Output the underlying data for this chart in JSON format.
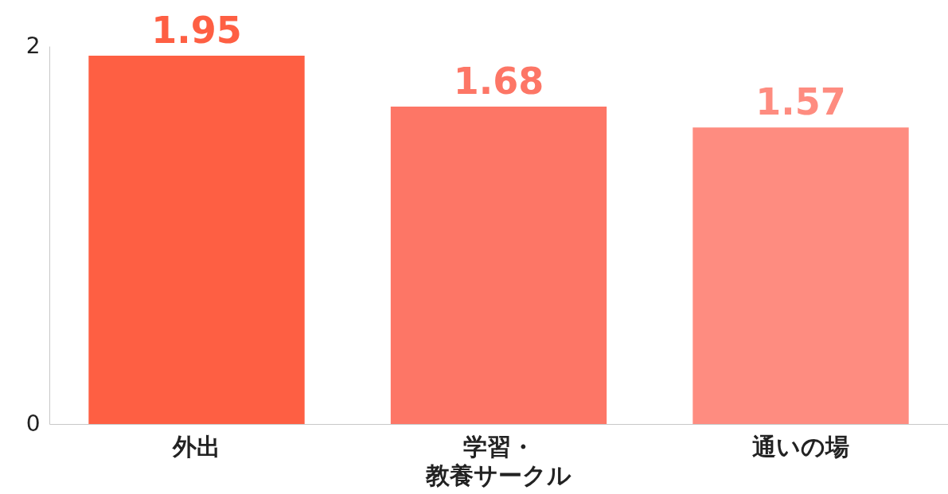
{
  "chart_data": {
    "type": "bar",
    "categories": [
      "外出",
      "学習・教養サークル",
      "通いの場"
    ],
    "values": [
      1.95,
      1.68,
      1.57
    ],
    "colors": [
      "#fe5f43",
      "#fd7666",
      "#fe8c80"
    ],
    "ylim": [
      0,
      2
    ],
    "yticks": [
      0,
      2
    ],
    "grid": false,
    "data_labels": true
  }
}
